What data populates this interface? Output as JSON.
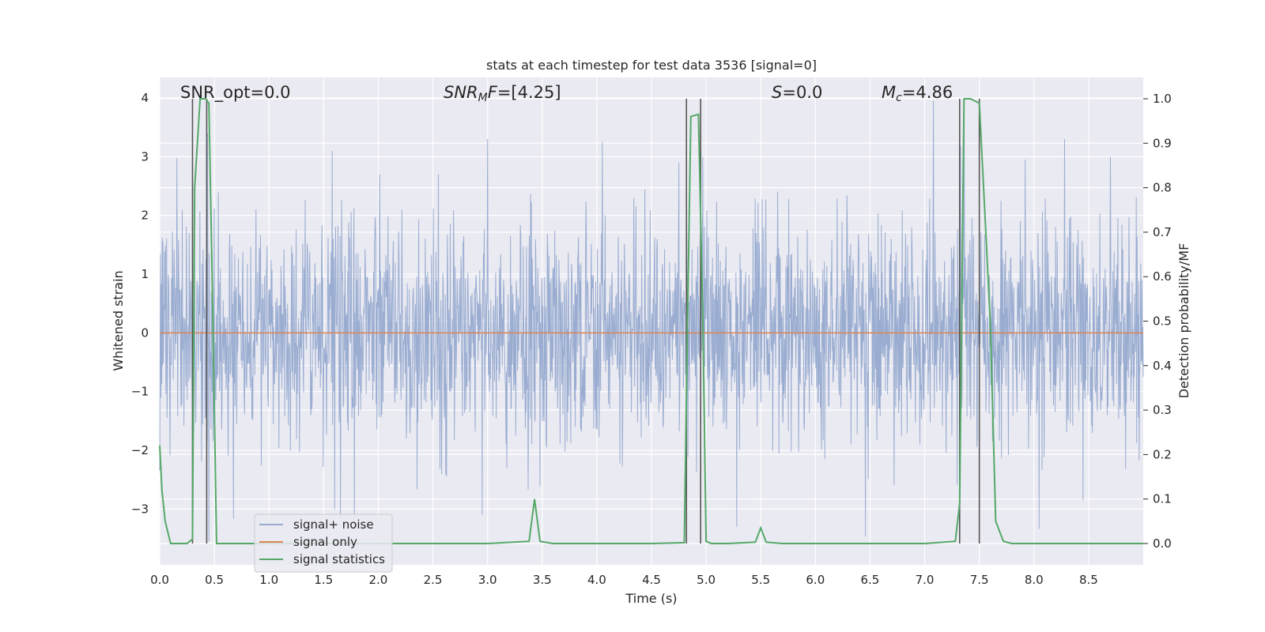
{
  "chart_data": {
    "type": "line",
    "title": "stats at each timestep for test data 3536 [signal=0]",
    "xlabel": "Time (s)",
    "ylabel": "Whitened strain",
    "ylabel_right": "Detection probability/MF",
    "xlim": [
      0.0,
      9.0
    ],
    "ylim": [
      -3.95,
      4.35
    ],
    "ylim_right": [
      -0.048,
      1.048
    ],
    "x_ticks": [
      "0.0",
      "0.5",
      "1.0",
      "1.5",
      "2.0",
      "2.5",
      "3.0",
      "3.5",
      "4.0",
      "4.5",
      "5.0",
      "5.5",
      "6.0",
      "6.5",
      "7.0",
      "7.5",
      "8.0",
      "8.5"
    ],
    "y_ticks": [
      "−3",
      "−2",
      "−1",
      "0",
      "1",
      "2",
      "3",
      "4"
    ],
    "y_ticks_right": [
      "0.0",
      "0.1",
      "0.2",
      "0.3",
      "0.4",
      "0.5",
      "0.6",
      "0.7",
      "0.8",
      "0.9",
      "1.0"
    ],
    "grid": true,
    "legend_position": "bottom-left",
    "annotations": {
      "snr_opt": "SNR_opt=0.0",
      "snr_mf_main": "SNR",
      "snr_mf_sub": "M",
      "snr_mf_italic": "F",
      "snr_mf_value": "=[4.25]",
      "s_italic": "S",
      "s_value": "=0.0",
      "mc_main": "M",
      "mc_sub": "c",
      "mc_value": "=4.86"
    },
    "series": [
      {
        "name": "signal+ noise",
        "color": "#9aadd1",
        "description_values": "whitened noise, approximately Gaussian, std ~1",
        "spikes": [
          [
            0.44,
            3.4
          ],
          [
            0.45,
            -3.55
          ],
          [
            0.88,
            2.1
          ],
          [
            1.58,
            3.1
          ],
          [
            1.78,
            -3.35
          ],
          [
            2.55,
            2.7
          ],
          [
            3.0,
            3.3
          ],
          [
            4.05,
            3.25
          ],
          [
            4.75,
            2.9
          ],
          [
            4.97,
            3.0
          ],
          [
            5.28,
            -3.3
          ],
          [
            7.08,
            3.95
          ],
          [
            7.36,
            3.9
          ],
          [
            7.92,
            2.95
          ],
          [
            8.28,
            3.3
          ],
          [
            8.7,
            3.0
          ],
          [
            1.6,
            -3.0
          ],
          [
            2.95,
            -3.1
          ],
          [
            8.45,
            -2.85
          ]
        ]
      },
      {
        "name": "signal only",
        "color": "#dd8452",
        "values_constant": 0.0
      },
      {
        "name": "signal statistics",
        "color": "#55a868",
        "axis": "right",
        "x": [
          0.0,
          0.02,
          0.05,
          0.1,
          0.15,
          0.25,
          0.3,
          0.32,
          0.37,
          0.42,
          0.45,
          0.48,
          0.52,
          0.6,
          1.0,
          2.0,
          3.0,
          3.38,
          3.43,
          3.48,
          3.6,
          4.0,
          4.5,
          4.8,
          4.83,
          4.86,
          4.93,
          4.97,
          5.0,
          5.05,
          5.2,
          5.45,
          5.5,
          5.55,
          5.7,
          6.0,
          7.0,
          7.28,
          7.32,
          7.36,
          7.42,
          7.5,
          7.6,
          7.65,
          7.72,
          7.8,
          8.0,
          9.0
        ],
        "y": [
          0.22,
          0.12,
          0.05,
          0.0,
          0.0,
          0.0,
          0.01,
          0.8,
          1.0,
          1.0,
          0.99,
          0.6,
          0.0,
          0.0,
          0.0,
          0.0,
          0.0,
          0.005,
          0.1,
          0.005,
          0.0,
          0.0,
          0.0,
          0.002,
          0.5,
          0.96,
          0.965,
          0.5,
          0.005,
          0.0,
          0.0,
          0.003,
          0.035,
          0.003,
          0.0,
          0.0,
          0.0,
          0.005,
          0.09,
          1.0,
          1.0,
          0.99,
          0.5,
          0.05,
          0.005,
          0.0,
          0.0,
          0.0
        ]
      }
    ],
    "vertical_markers": [
      0.3,
      0.43,
      4.82,
      4.95,
      7.32,
      7.5
    ]
  }
}
